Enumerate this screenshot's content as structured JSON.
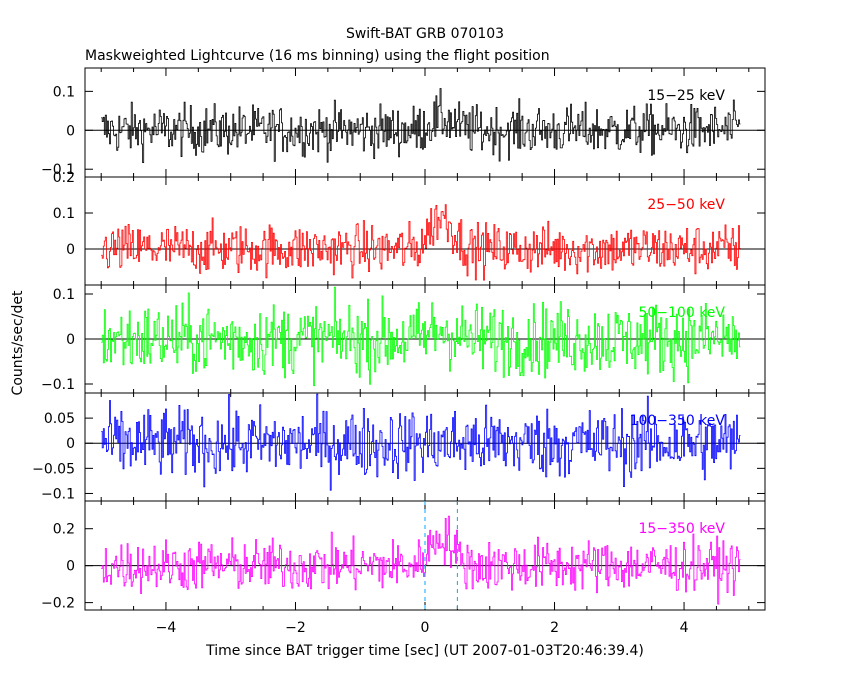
{
  "chart_data": {
    "type": "line",
    "title": "Swift-BAT GRB 070103",
    "subtitle": "Maskweighted Lightcurve (16 ms binning) using the flight position",
    "xlabel": "Time since BAT trigger time [sec] (UT 2007-01-03T20:46:39.4)",
    "ylabel": "Counts/sec/det",
    "xlim": [
      -5.25,
      5.25
    ],
    "x_ticks": [
      -4,
      -2,
      0,
      2,
      4
    ],
    "markers": [
      0.0,
      0.5
    ],
    "panels": [
      {
        "name": "15-25 keV",
        "label": "15−25 keV",
        "color": "#000000",
        "ylim": [
          -0.12,
          0.16
        ],
        "yticks": [
          -0.1,
          0,
          0.1
        ],
        "ytick_labels": [
          "−0.1",
          "0",
          "0.1"
        ],
        "noise": 0.032,
        "burst": 0.03
      },
      {
        "name": "25-50 keV",
        "label": "25−50 keV",
        "color": "#ff0000",
        "ylim": [
          -0.1,
          0.2
        ],
        "yticks": [
          0,
          0.1,
          0.2
        ],
        "ytick_labels": [
          "0",
          "0.1",
          "0.2"
        ],
        "noise": 0.035,
        "burst": 0.09
      },
      {
        "name": "50-100 keV",
        "label": "50−100 keV",
        "color": "#00ff00",
        "ylim": [
          -0.12,
          0.12
        ],
        "yticks": [
          -0.1,
          0,
          0.1
        ],
        "ytick_labels": [
          "−0.1",
          "0",
          "0.1"
        ],
        "noise": 0.04,
        "burst": 0.02
      },
      {
        "name": "100-350 keV",
        "label": "100−350 keV",
        "color": "#0000ff",
        "ylim": [
          -0.115,
          0.1
        ],
        "yticks": [
          -0.1,
          -0.05,
          0,
          0.05
        ],
        "ytick_labels": [
          "−0.1",
          "−0.05",
          "0",
          "0.05"
        ],
        "noise": 0.035,
        "burst": 0.0
      },
      {
        "name": "15-350 keV",
        "label": "15−350 keV",
        "color": "#ff00ff",
        "ylim": [
          -0.24,
          0.35
        ],
        "yticks": [
          -0.2,
          0,
          0.2
        ],
        "ytick_labels": [
          "−0.2",
          "0",
          "0.2"
        ],
        "noise": 0.07,
        "burst": 0.16
      }
    ],
    "grid": false,
    "legend": "none"
  }
}
